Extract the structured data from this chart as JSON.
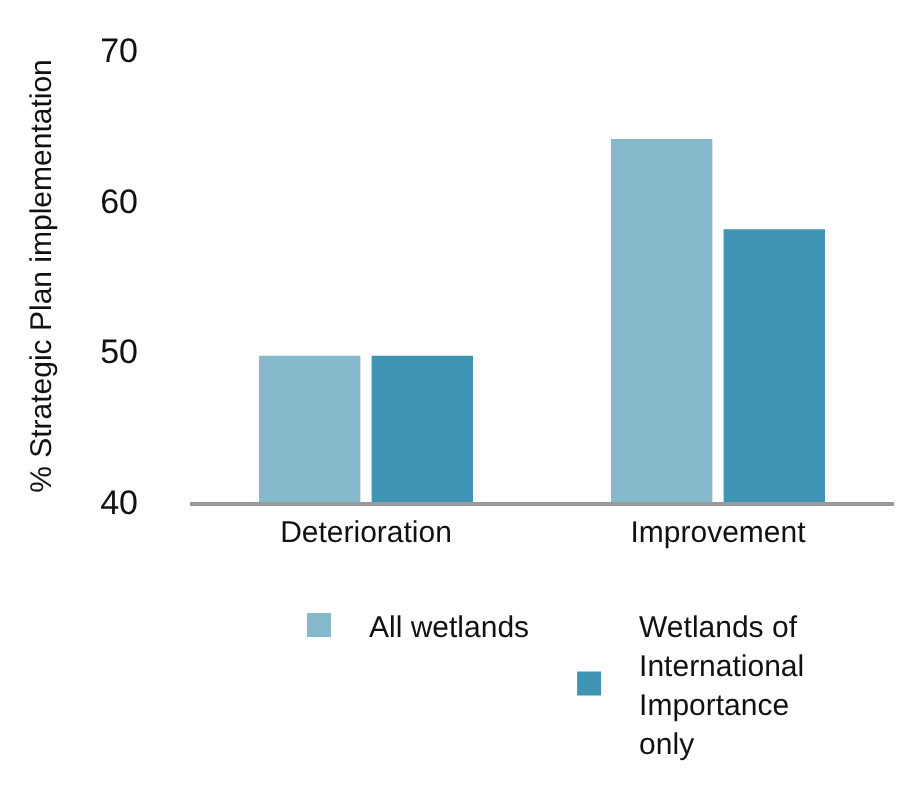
{
  "chart_data": {
    "type": "bar",
    "ylabel": "% Strategic Plan implementation",
    "categories": [
      "Deterioration",
      "Improvement"
    ],
    "series": [
      {
        "name": "All wetlands",
        "color": "#85bacd",
        "values": [
          49.7,
          64.1
        ]
      },
      {
        "name": "Wetlands of International Importance only",
        "color": "#3f95b3",
        "values": [
          49.7,
          58.1
        ]
      }
    ],
    "ylim": [
      40,
      70
    ],
    "yticks": [
      40,
      50,
      60,
      70
    ],
    "grid": false,
    "legend": "bottom"
  }
}
